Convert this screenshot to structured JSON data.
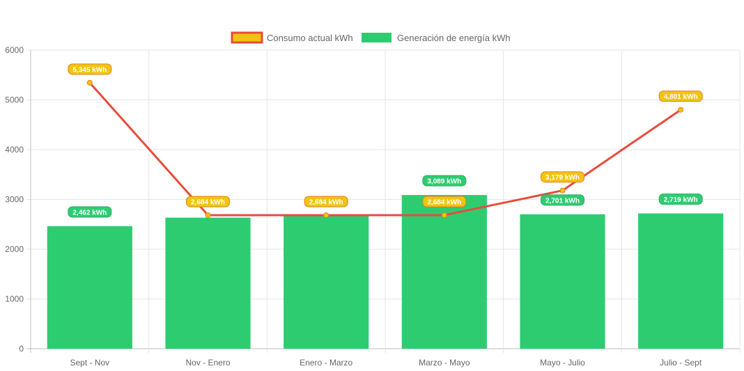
{
  "chart_data": {
    "type": "bar",
    "categories": [
      "Sept - Nov",
      "Nov - Enero",
      "Enero - Marzo",
      "Marzo - Mayo",
      "Mayo - Julio",
      "Julio - Sept"
    ],
    "series": [
      {
        "name": "Consumo actual kWh",
        "render": "line",
        "values": [
          5345,
          2684,
          2684,
          2684,
          3179,
          4801
        ],
        "labels": [
          "5,345 kWh",
          "2,684 kWh",
          "2,684 kWh",
          "2,684 kWh",
          "3,179 kWh",
          "4,801 kWh"
        ],
        "color": "#e74c3c",
        "fill": "#f1c40f"
      },
      {
        "name": "Generación de energía kWh",
        "render": "bar",
        "values": [
          2462,
          2634,
          2684,
          3089,
          2701,
          2719
        ],
        "labels": [
          "2,462 kWh",
          "",
          "",
          "3,089 kWh",
          "2,701 kWh",
          "2,719 kWh"
        ],
        "color": "#2ecc71"
      }
    ],
    "y_ticks": [
      "0",
      "1000",
      "2000",
      "3000",
      "4000",
      "5000",
      "6000"
    ],
    "ylim": [
      0,
      6000
    ],
    "grid": true,
    "legend_position": "top-center",
    "title": "",
    "xlabel": "",
    "ylabel": ""
  }
}
